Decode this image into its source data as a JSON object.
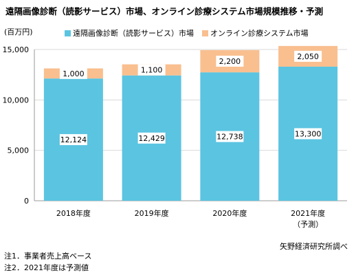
{
  "title": "遠隔画像診断（読影サービス）市場、オンライン診療システム市場規模推移・予測",
  "unit": "(百万円)",
  "source": "矢野経済研究所調べ",
  "notes": [
    "注1．事業者売上高ベース",
    "注2．2021年度は予測値"
  ],
  "colors": {
    "remote_imaging": "#5bc4e1",
    "online_clinic": "#f9bf8f",
    "grid": "#d9d9d9",
    "axis": "#999999"
  },
  "chart_data": {
    "type": "bar",
    "stacked": true,
    "categories": [
      "2018年度",
      "2019年度",
      "2020年度",
      "2021年度\n（予測）"
    ],
    "series": [
      {
        "name": "遠隔画像診断（読影サービス）市場",
        "values": [
          12124,
          12429,
          12738,
          13300
        ],
        "color": "#5bc4e1"
      },
      {
        "name": "オンライン診療システム市場",
        "values": [
          1000,
          1100,
          2200,
          2050
        ],
        "color": "#f9bf8f"
      }
    ],
    "ylim": [
      0,
      15000
    ],
    "yticks": [
      0,
      5000,
      10000,
      15000
    ],
    "ytick_labels": [
      "0",
      "5,000",
      "10,000",
      "15,000"
    ],
    "data_labels": [
      [
        "12,124",
        "12,429",
        "12,738",
        "13,300"
      ],
      [
        "1,000",
        "1,100",
        "2,200",
        "2,050"
      ]
    ],
    "grid": true,
    "legend": "top"
  }
}
